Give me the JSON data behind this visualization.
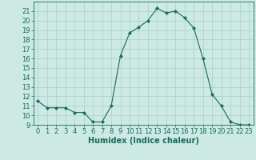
{
  "x": [
    0,
    1,
    2,
    3,
    4,
    5,
    6,
    7,
    8,
    9,
    10,
    11,
    12,
    13,
    14,
    15,
    16,
    17,
    18,
    19,
    20,
    21,
    22,
    23
  ],
  "y": [
    11.5,
    10.8,
    10.8,
    10.8,
    10.3,
    10.3,
    9.3,
    9.3,
    11.0,
    16.3,
    18.7,
    19.3,
    20.0,
    21.3,
    20.8,
    21.0,
    20.3,
    19.2,
    16.0,
    12.2,
    11.0,
    9.3,
    9.0,
    9.0
  ],
  "line_color": "#1a6b5a",
  "marker": "D",
  "marker_size": 2,
  "bg_color": "#cce9e4",
  "grid_color": "#aacfc9",
  "xlabel": "Humidex (Indice chaleur)",
  "xlim": [
    -0.5,
    23.5
  ],
  "ylim": [
    9,
    22
  ],
  "yticks": [
    9,
    10,
    11,
    12,
    13,
    14,
    15,
    16,
    17,
    18,
    19,
    20,
    21
  ],
  "xticks": [
    0,
    1,
    2,
    3,
    4,
    5,
    6,
    7,
    8,
    9,
    10,
    11,
    12,
    13,
    14,
    15,
    16,
    17,
    18,
    19,
    20,
    21,
    22,
    23
  ],
  "xlabel_fontsize": 7,
  "tick_fontsize": 6
}
